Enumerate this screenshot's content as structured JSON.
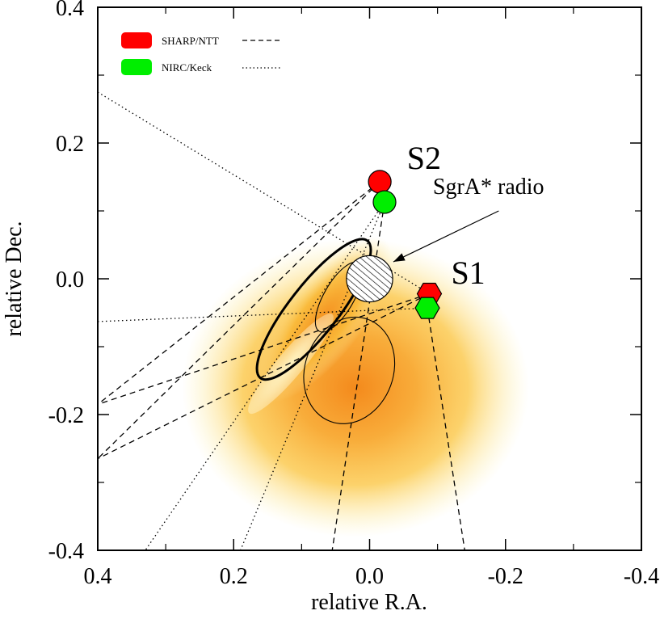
{
  "chart_data": {
    "type": "scatter",
    "title": "",
    "xlabel": "relative R.A.",
    "ylabel": "relative Dec.",
    "xlim": [
      0.4,
      -0.4
    ],
    "ylim": [
      -0.4,
      0.4
    ],
    "x_reversed": true,
    "grid": false,
    "legend_position": "top-left",
    "xticks": [
      0.4,
      0.2,
      0.0,
      -0.2,
      -0.4
    ],
    "xtick_labels": [
      "0.4",
      "0.2",
      "0.0",
      "-0.2",
      "-0.4"
    ],
    "yticks": [
      0.4,
      0.2,
      0.0,
      -0.2,
      -0.4
    ],
    "ytick_labels": [
      "0.4",
      "0.2",
      "0.0",
      "-0.2",
      "-0.4"
    ],
    "colors": {
      "sharp": "#ff0000",
      "nirc": "#00ee00",
      "density_core": "#f48a1c",
      "density_mid": "#fbc33a",
      "density_edge": "#fdf0a0"
    },
    "legend": [
      {
        "label": "SHARP/NTT",
        "color": "#ff0000",
        "line_style": "dashed"
      },
      {
        "label": "NIRC/Keck",
        "color": "#00ee00",
        "line_style": "dotted"
      }
    ],
    "series": [
      {
        "name": "SHARP/NTT",
        "marker": "circle",
        "points": [
          {
            "star": "S2",
            "x": -0.015,
            "y": 0.143
          }
        ]
      },
      {
        "name": "SHARP/NTT",
        "marker": "hexagon",
        "points": [
          {
            "star": "S1",
            "x": -0.088,
            "y": -0.022
          }
        ]
      },
      {
        "name": "NIRC/Keck",
        "marker": "circle",
        "points": [
          {
            "star": "S2",
            "x": -0.022,
            "y": 0.113
          }
        ]
      },
      {
        "name": "NIRC/Keck",
        "marker": "hexagon",
        "points": [
          {
            "star": "S1",
            "x": -0.085,
            "y": -0.043
          }
        ]
      }
    ],
    "sgra_radio": {
      "x": 0.0,
      "y": 0.0,
      "radius": 0.034
    },
    "sgra_label_pos": {
      "x": -0.175,
      "y": 0.125
    },
    "star_labels": [
      {
        "text": "S2",
        "x": -0.055,
        "y": 0.162
      },
      {
        "text": "S1",
        "x": -0.12,
        "y": -0.007
      }
    ],
    "annotation": {
      "text": "SgrA* radio",
      "from": {
        "x": -0.19,
        "y": 0.1
      },
      "to": {
        "x": -0.035,
        "y": 0.025
      }
    },
    "dashed_lines": [
      [
        [
          -0.015,
          0.143
        ],
        [
          0.4,
          -0.185
        ]
      ],
      [
        [
          -0.015,
          0.143
        ],
        [
          0.4,
          -0.265
        ]
      ],
      [
        [
          -0.022,
          0.113
        ],
        [
          0.055,
          -0.4
        ]
      ],
      [
        [
          -0.088,
          -0.022
        ],
        [
          0.4,
          -0.185
        ]
      ],
      [
        [
          -0.088,
          -0.022
        ],
        [
          0.4,
          -0.265
        ]
      ],
      [
        [
          -0.085,
          -0.043
        ],
        [
          -0.14,
          -0.4
        ]
      ]
    ],
    "dotted_lines": [
      [
        [
          0.4,
          0.275
        ],
        [
          -0.088,
          -0.022
        ]
      ],
      [
        [
          0.4,
          -0.063
        ],
        [
          -0.088,
          -0.043
        ]
      ],
      [
        [
          -0.022,
          0.113
        ],
        [
          0.33,
          -0.4
        ]
      ],
      [
        [
          -0.022,
          0.113
        ],
        [
          0.19,
          -0.4
        ]
      ]
    ],
    "contours": [
      {
        "style": "thick",
        "cx": 0.082,
        "cy": -0.045,
        "rx": 0.128,
        "ry": 0.036,
        "angle_deg": 52
      },
      {
        "style": "thin",
        "cx": 0.045,
        "cy": -0.027,
        "rx": 0.058,
        "ry": 0.022,
        "angle_deg": 60
      },
      {
        "style": "thin",
        "cx": 0.03,
        "cy": -0.135,
        "rx": 0.08,
        "ry": 0.065,
        "angle_deg": 70
      }
    ]
  }
}
